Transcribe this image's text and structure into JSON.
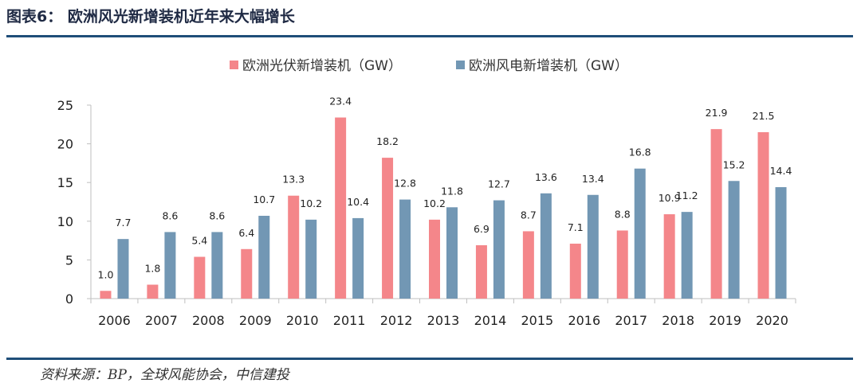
{
  "figure": {
    "title": "图表6：  欧洲风光新增装机近年来大幅增长",
    "source": "资料来源：BP，全球风能协会，中信建投"
  },
  "colors": {
    "solar": "#f4868a",
    "wind": "#7297b4",
    "axis": "#bfbfbf",
    "rule": "#1f4e79"
  },
  "chart_data": {
    "type": "bar",
    "categories": [
      "2006",
      "2007",
      "2008",
      "2009",
      "2010",
      "2011",
      "2012",
      "2013",
      "2014",
      "2015",
      "2016",
      "2017",
      "2018",
      "2019",
      "2020"
    ],
    "series": [
      {
        "name": "欧洲光伏新增装机（GW）",
        "values": [
          1.0,
          1.8,
          5.4,
          6.4,
          13.3,
          23.4,
          18.2,
          10.2,
          6.9,
          8.7,
          7.1,
          8.8,
          10.9,
          21.9,
          21.5
        ]
      },
      {
        "name": "欧洲风电新增装机（GW）",
        "values": [
          7.7,
          8.6,
          8.6,
          10.7,
          10.2,
          10.4,
          12.8,
          11.8,
          12.7,
          13.6,
          13.4,
          16.8,
          11.2,
          15.2,
          14.4
        ]
      }
    ],
    "ylim": [
      0,
      25
    ],
    "yticks": [
      0,
      5,
      10,
      15,
      20,
      25
    ],
    "legend": "top-center",
    "grid": false
  }
}
